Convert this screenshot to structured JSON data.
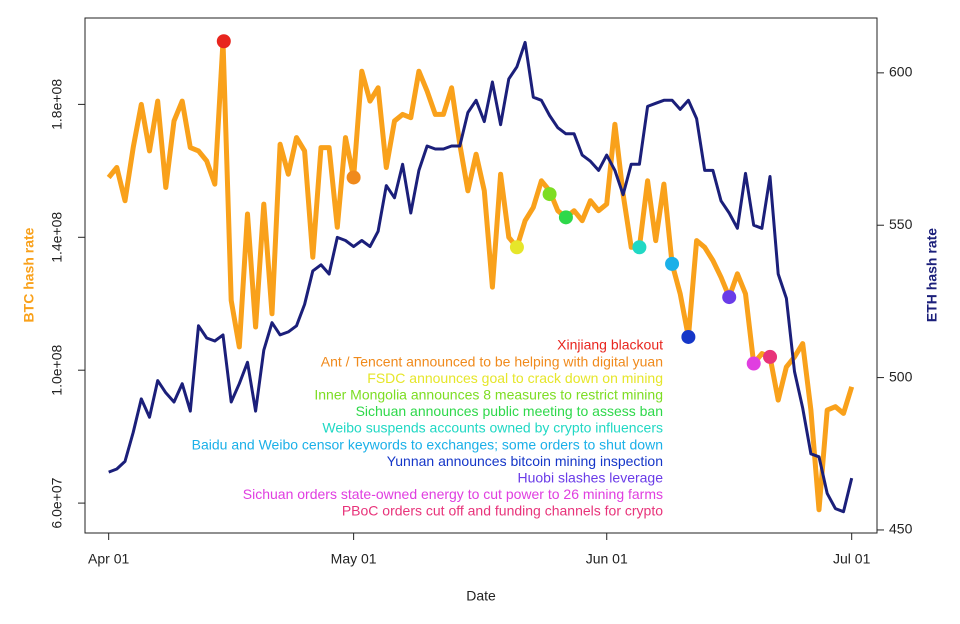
{
  "chart_data": {
    "type": "line",
    "x_label": "Date",
    "y_label": "BTC hash rate",
    "y2_label": "ETH hash rate",
    "x": [
      0,
      1,
      2,
      3,
      4,
      5,
      6,
      7,
      8,
      9,
      10,
      11,
      12,
      13,
      14,
      15,
      16,
      17,
      18,
      19,
      20,
      21,
      22,
      23,
      24,
      25,
      26,
      27,
      28,
      29,
      30,
      31,
      32,
      33,
      34,
      35,
      36,
      37,
      38,
      39,
      40,
      41,
      42,
      43,
      44,
      45,
      46,
      47,
      48,
      49,
      50,
      51,
      52,
      53,
      54,
      55,
      56,
      57,
      58,
      59,
      60,
      61,
      62,
      63,
      64,
      65,
      66,
      67,
      68,
      69,
      70,
      71,
      72,
      73,
      74,
      75,
      76,
      77,
      78,
      79,
      80,
      81,
      82,
      83,
      84,
      85,
      86,
      87,
      88,
      89,
      90,
      91
    ],
    "xlim": [
      -2.9,
      94.1
    ],
    "xticks": [
      {
        "value": 0,
        "label": "Apr 01"
      },
      {
        "value": 30,
        "label": "May 01"
      },
      {
        "value": 61,
        "label": "Jun 01"
      },
      {
        "value": 91,
        "label": "Jul 01"
      }
    ],
    "ylim": [
      51000000,
      206000000
    ],
    "yticks": [
      {
        "value": 60000000,
        "label": "6.0e+07"
      },
      {
        "value": 100000000,
        "label": "1.0e+08"
      },
      {
        "value": 140000000,
        "label": "1.4e+08"
      },
      {
        "value": 180000000,
        "label": "1.8e+08"
      }
    ],
    "y2lim": [
      449,
      618
    ],
    "y2ticks": [
      450,
      500,
      550,
      600
    ],
    "series": [
      {
        "name": "BTC hash rate",
        "color": "#f9a11b",
        "axis": "y",
        "values": [
          158000000.0,
          161000000.0,
          151000000.0,
          167000000.0,
          180000000.0,
          166000000.0,
          181000000.0,
          155000000.0,
          175000000.0,
          181000000.0,
          167000000.0,
          166000000.0,
          163000000.0,
          156000000.0,
          199000000.0,
          121000000.0,
          107000000.0,
          147000000.0,
          113000000.0,
          150000000.0,
          117000000.0,
          168000000.0,
          159000000.0,
          170000000.0,
          166000000.0,
          134000000.0,
          167000000.0,
          167000000.0,
          143000000.0,
          170000000.0,
          158000000.0,
          190000000.0,
          181000000.0,
          185000000.0,
          161000000.0,
          175000000.0,
          177000000.0,
          176000000.0,
          190000000.0,
          184000000.0,
          177000000.0,
          177000000.0,
          185000000.0,
          168000000.0,
          154000000.0,
          165000000.0,
          154000000.0,
          125000000.0,
          159000000.0,
          140000000.0,
          137000000.0,
          145000000.0,
          149000000.0,
          157000000.0,
          154000000.0,
          148000000.0,
          146000000.0,
          148000000.0,
          145000000.0,
          151000000.0,
          148000000.0,
          150000000.0,
          174000000.0,
          153000000.0,
          137000000.0,
          137000000.0,
          157000000.0,
          139000000.0,
          156000000.0,
          132000000.0,
          123000000.0,
          110000000.0,
          139000000.0,
          137000000.0,
          133000000.0,
          128000000.0,
          122000000.0,
          129000000.0,
          123000000.0,
          102000000.0,
          105000000.0,
          104000000.0,
          91000000.0,
          101000000.0,
          104000000.0,
          108000000.0,
          88000000.0,
          58000000.0,
          88000000.0,
          89000000.0,
          87000000.0,
          95000000.0
        ]
      },
      {
        "name": "ETH hash rate",
        "color": "#1b1f7a",
        "axis": "y2",
        "values": [
          469,
          470,
          472.5,
          482,
          493,
          487,
          499,
          495,
          492,
          498,
          489,
          517,
          513,
          512,
          514,
          492,
          498,
          505,
          489,
          509,
          518,
          514,
          515,
          517,
          524,
          535,
          537,
          534,
          546,
          545,
          543,
          545,
          543,
          548,
          563,
          559,
          570,
          554,
          568,
          576,
          575,
          575,
          576,
          576,
          587,
          591,
          584,
          597,
          583,
          598,
          602,
          610,
          592,
          591,
          586,
          582,
          580,
          580,
          573,
          571,
          568,
          573,
          568,
          560,
          570,
          570,
          589,
          590,
          591,
          591,
          588,
          591,
          585,
          568,
          568,
          558,
          554,
          549,
          567,
          550,
          549,
          566,
          534,
          526,
          502,
          490,
          475,
          474,
          462,
          457,
          456,
          467
        ]
      }
    ],
    "events": [
      {
        "name": "Xinjiang blackout",
        "color": "#e8251e",
        "x": 14.1,
        "y": 199000000.0
      },
      {
        "name": "Ant / Tencent announced to be helping with digital yuan",
        "color": "#f08a1c",
        "x": 30,
        "y": 158000000.0
      },
      {
        "name": "FSDC announces goal to crack down on mining",
        "color": "#e6e62a",
        "x": 50,
        "y": 137000000.0
      },
      {
        "name": "Inner Mongolia announces 8 measures to restrict mining",
        "color": "#7ddd23",
        "x": 54,
        "y": 153000000.0
      },
      {
        "name": "Sichuan announces public meeting to assess ban",
        "color": "#2ed84a",
        "x": 56,
        "y": 146000000.0
      },
      {
        "name": "Weibo suspends accounts owned by crypto influencers",
        "color": "#21d8c4",
        "x": 65,
        "y": 137000000.0
      },
      {
        "name": "Baidu and Weibo censor keywords to exchanges; some orders to shut down",
        "color": "#1ab0e8",
        "x": 69,
        "y": 132000000.0
      },
      {
        "name": "Yunnan announces bitcoin mining inspection",
        "color": "#1536c8",
        "x": 71,
        "y": 110000000.0
      },
      {
        "name": "Huobi slashes leverage",
        "color": "#6a3ce8",
        "x": 76,
        "y": 122000000.0
      },
      {
        "name": "Sichuan orders state-owned energy to cut power to 26 mining farms",
        "color": "#e03ee0",
        "x": 79,
        "y": 102000000.0
      },
      {
        "name": "PBoC orders cut off and funding channels for crypto",
        "color": "#e8337a",
        "x": 81,
        "y": 104000000.0
      }
    ]
  }
}
